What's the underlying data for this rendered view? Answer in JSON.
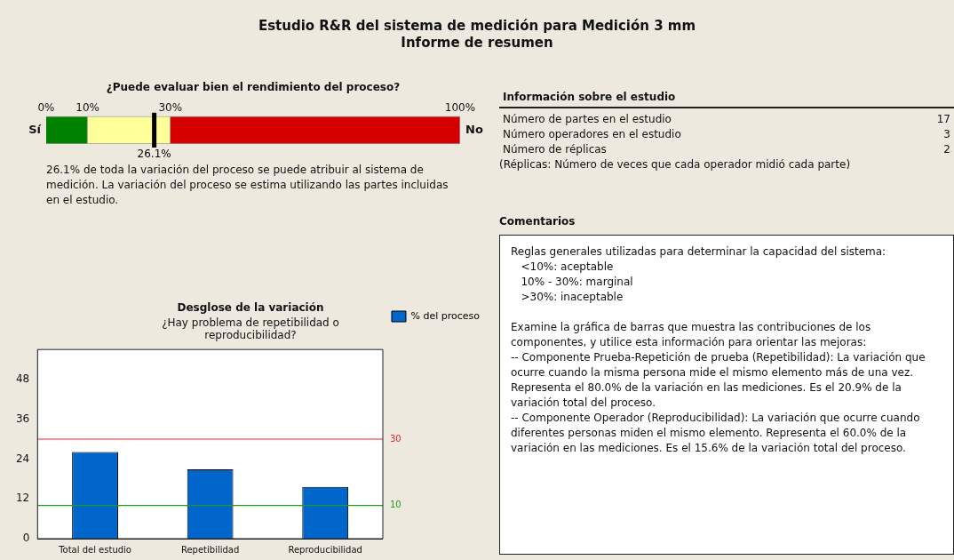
{
  "chart_data": [
    {
      "type": "bar",
      "orientation": "horizontal",
      "stacked": true,
      "title": "Estudio R&R del sistema de medición para Medición 3 mm\nInforme de resumen",
      "subtitle": "¿Puede evaluar bien el rendimiento del proceso?",
      "categories": [
        null
      ],
      "series": [
        {
          "color": "#008000",
          "values": [
            10
          ]
        },
        {
          "color": "#ffff99",
          "values": [
            20
          ]
        },
        {
          "color": "#d40000",
          "values": [
            70
          ]
        }
      ],
      "xlim": [
        0,
        100
      ],
      "xticks": [
        {
          "value": 0,
          "label": "0%"
        },
        {
          "value": 10,
          "label": "10%"
        },
        {
          "value": 30,
          "label": "30%"
        },
        {
          "value": 100,
          "label": "100%"
        }
      ],
      "ref_lines": [
        {
          "axis": "x",
          "value": 26.1,
          "label": "26.1%",
          "color": "#000000"
        }
      ],
      "tick_labels": "x",
      "grid": false,
      "annotations": [
        "Sí",
        "No",
        "26.1% de toda la variación del proceso se puede atribuir al sistema de medición. La variación del proceso se estima utilizando las partes incluidas en el estudio."
      ]
    },
    {
      "type": "bar",
      "title": "Desglose de la variación",
      "subtitle": "¿Hay problema de repetibilidad o reproducibilidad?",
      "categories": [
        "Total del estudio",
        "Repetibilidad",
        "Reproducibilidad"
      ],
      "series": [
        {
          "name": "% del proceso",
          "color": "#0066cc",
          "values": [
            26.1,
            20.9,
            15.6
          ]
        }
      ],
      "ylim": [
        0,
        57
      ],
      "yticks": [
        0,
        12,
        24,
        36,
        48
      ],
      "grid": false,
      "legend": "right",
      "ref_lines": [
        {
          "axis": "y",
          "value": 30,
          "label": "30",
          "color": "#e8262b"
        },
        {
          "axis": "y",
          "value": 10,
          "label": "10",
          "color": "#229922"
        }
      ]
    },
    {
      "type": "other",
      "title": "Información sobre el estudio",
      "categories": [
        "Número de partes en el estudio",
        "Número operadores en el estudio",
        "Número de réplicas"
      ],
      "values": [
        17,
        3,
        2
      ],
      "data_labels": true,
      "annotations": [
        "(Réplicas: Número de veces que cada operador midió cada parte)"
      ]
    },
    {
      "type": "other",
      "title": "Comentarios",
      "annotations": [
        "Reglas generales utilizadas para determinar la capacidad del sistema:\n   <10%: aceptable\n   10% - 30%: marginal\n   >30%: inaceptable",
        "Examine la gráfica de barras que muestra las contribuciones de los componentes, y utilice esta información para orientar las mejoras:\n-- Componente Prueba-Repetición de prueba (Repetibilidad): La variación que ocurre cuando la misma persona mide el mismo elemento más de una vez. Representa el 80.0% de la variación en las mediciones. Es el 20.9% de la variación total del proceso.\n-- Componente Operador (Reproducibilidad): La variación que ocurre cuando diferentes personas miden el mismo elemento. Representa el 60.0% de la variación en las mediciones. Es el 15.6% de la variación total del proceso."
      ]
    }
  ]
}
